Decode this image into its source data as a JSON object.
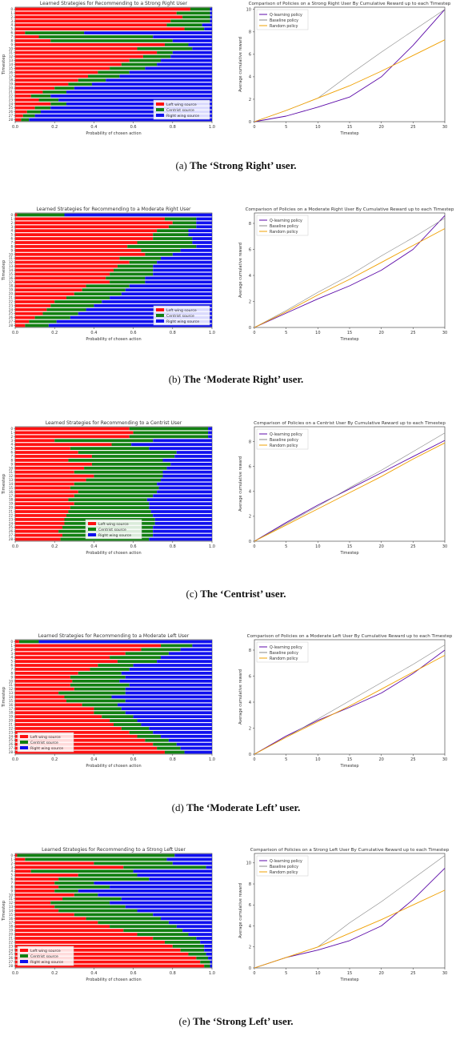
{
  "legend_bar": [
    "Left wing source",
    "Centrist source",
    "Right wing source"
  ],
  "legend_line": [
    "Q-learning policy",
    "Baseline policy",
    "Random policy"
  ],
  "colors": {
    "left": "#ff1111",
    "centrist": "#128012",
    "right": "#1010ee",
    "qlearn": "#5c0aa8",
    "baseline": "#888888",
    "random": "#f0a000"
  },
  "captions": [
    {
      "label": "(a)",
      "text": "The ‘Strong Right’ user."
    },
    {
      "label": "(b)",
      "text": "The ‘Moderate Right’ user."
    },
    {
      "label": "(c)",
      "text": "The ‘Centrist’ user."
    },
    {
      "label": "(d)",
      "text": "The ‘Moderate Left’ user."
    },
    {
      "label": "(e)",
      "text": "The ‘Strong Left’ user."
    }
  ],
  "chart_data": [
    {
      "type": "bar",
      "orientation": "horizontal",
      "stacked": true,
      "title": "Learned Strategies for Recommending to a Strong Right User",
      "xlabel": "Probability of chosen action",
      "ylabel": "Timestep",
      "xlim": [
        0,
        1.0
      ],
      "xticks": [
        "0.0",
        "0.2",
        "0.4",
        "0.6",
        "0.8",
        "1.0"
      ],
      "legend_loc": "lower-right",
      "series": [
        {
          "name": "Left wing source",
          "values": [
            0.89,
            0.82,
            0.85,
            0.79,
            0.77,
            0.86,
            0.05,
            0.12,
            0.18,
            0.76,
            0.62,
            0.72,
            0.65,
            0.58,
            0.54,
            0.48,
            0.42,
            0.37,
            0.32,
            0.27,
            0.2,
            0.14,
            0.08,
            0.12,
            0.18,
            0.1,
            0.06,
            0.04,
            0.03
          ]
        },
        {
          "name": "Centrist source",
          "values": [
            0.1,
            0.17,
            0.14,
            0.2,
            0.18,
            0.1,
            0.3,
            0.58,
            0.62,
            0.12,
            0.28,
            0.08,
            0.14,
            0.16,
            0.18,
            0.18,
            0.16,
            0.16,
            0.14,
            0.12,
            0.1,
            0.12,
            0.1,
            0.1,
            0.08,
            0.08,
            0.07,
            0.06,
            0.04
          ]
        },
        {
          "name": "Right wing source",
          "values": [
            0.01,
            0.01,
            0.01,
            0.01,
            0.05,
            0.04,
            0.65,
            0.3,
            0.2,
            0.12,
            0.1,
            0.2,
            0.21,
            0.26,
            0.28,
            0.34,
            0.42,
            0.47,
            0.54,
            0.61,
            0.7,
            0.74,
            0.82,
            0.78,
            0.74,
            0.82,
            0.87,
            0.9,
            0.93
          ]
        }
      ]
    },
    {
      "type": "line",
      "title": "Comparison of Policies on a Strong Right User By Cumulative Reward up to each Timestep",
      "xlabel": "Timestep",
      "ylabel": "Average cumulative reward",
      "xlim": [
        0,
        30
      ],
      "ylim": [
        0,
        10.2
      ],
      "xticks": [
        "0",
        "5",
        "10",
        "15",
        "20",
        "25",
        "30"
      ],
      "yticks": [
        "0",
        "2",
        "4",
        "6",
        "8",
        "10"
      ],
      "legend_loc": "upper-left",
      "x": [
        0,
        5,
        10,
        15,
        20,
        25,
        30
      ],
      "series": [
        {
          "name": "Q-learning policy",
          "values": [
            0,
            0.5,
            1.3,
            2.2,
            4.0,
            6.8,
            10.0
          ]
        },
        {
          "name": "Baseline policy",
          "values": [
            0,
            1.0,
            2.1,
            4.2,
            6.2,
            8.1,
            10.0
          ]
        },
        {
          "name": "Random policy",
          "values": [
            0,
            1.0,
            2.1,
            3.2,
            4.5,
            5.9,
            7.3
          ]
        }
      ]
    },
    {
      "type": "bar",
      "orientation": "horizontal",
      "stacked": true,
      "title": "Learned Strategies for Recommending to a Moderate Right User",
      "xlabel": "Probability of chosen action",
      "ylabel": "Timestep",
      "xlim": [
        0,
        1.0
      ],
      "xticks": [
        "0.0",
        "0.2",
        "0.4",
        "0.6",
        "0.8",
        "1.0"
      ],
      "legend_loc": "lower-right",
      "series": [
        {
          "name": "Left wing source",
          "values": [
            0.01,
            0.76,
            0.8,
            0.78,
            0.72,
            0.7,
            0.7,
            0.62,
            0.57,
            0.64,
            0.66,
            0.53,
            0.58,
            0.52,
            0.5,
            0.48,
            0.46,
            0.48,
            0.36,
            0.34,
            0.3,
            0.26,
            0.2,
            0.18,
            0.16,
            0.14,
            0.1,
            0.07,
            0.05
          ]
        },
        {
          "name": "Centrist source",
          "values": [
            0.24,
            0.16,
            0.12,
            0.14,
            0.16,
            0.18,
            0.2,
            0.28,
            0.35,
            0.2,
            0.14,
            0.21,
            0.14,
            0.18,
            0.2,
            0.22,
            0.2,
            0.18,
            0.22,
            0.22,
            0.24,
            0.22,
            0.24,
            0.22,
            0.2,
            0.18,
            0.18,
            0.14,
            0.12
          ]
        },
        {
          "name": "Right wing source",
          "values": [
            0.75,
            0.08,
            0.08,
            0.08,
            0.12,
            0.12,
            0.1,
            0.1,
            0.08,
            0.16,
            0.2,
            0.26,
            0.28,
            0.3,
            0.3,
            0.3,
            0.34,
            0.34,
            0.42,
            0.44,
            0.46,
            0.52,
            0.56,
            0.6,
            0.64,
            0.68,
            0.72,
            0.79,
            0.83
          ]
        }
      ]
    },
    {
      "type": "line",
      "title": "Comparison of Policies on a Moderate Right User By Cumulative Reward up to each Timestep",
      "xlabel": "Timestep",
      "ylabel": "Average cumulative reward",
      "xlim": [
        0,
        30
      ],
      "ylim": [
        0,
        8.8
      ],
      "xticks": [
        "0",
        "5",
        "10",
        "15",
        "20",
        "25",
        "30"
      ],
      "yticks": [
        "0",
        "2",
        "4",
        "6",
        "8"
      ],
      "legend_loc": "upper-left",
      "x": [
        0,
        5,
        10,
        15,
        20,
        25,
        30
      ],
      "series": [
        {
          "name": "Q-learning policy",
          "values": [
            0,
            1.1,
            2.2,
            3.2,
            4.4,
            6.0,
            8.6
          ]
        },
        {
          "name": "Baseline policy",
          "values": [
            0,
            1.3,
            2.7,
            4.0,
            5.5,
            6.9,
            8.4
          ]
        },
        {
          "name": "Random policy",
          "values": [
            0,
            1.2,
            2.5,
            3.7,
            5.0,
            6.3,
            7.6
          ]
        }
      ]
    },
    {
      "type": "bar",
      "orientation": "horizontal",
      "stacked": true,
      "title": "Learned Strategies for Recommending to a Centrist User",
      "xlabel": "Probability of chosen action",
      "ylabel": "Timestep",
      "xlim": [
        0,
        1.0
      ],
      "xticks": [
        "0.0",
        "0.2",
        "0.4",
        "0.6",
        "0.8",
        "1.0"
      ],
      "legend_loc": "lower-center",
      "series": [
        {
          "name": "Left wing source",
          "values": [
            0.58,
            0.6,
            0.58,
            0.2,
            0.49,
            0.28,
            0.32,
            0.39,
            0.27,
            0.39,
            0.35,
            0.3,
            0.4,
            0.36,
            0.3,
            0.28,
            0.32,
            0.3,
            0.27,
            0.3,
            0.28,
            0.27,
            0.26,
            0.25,
            0.25,
            0.24,
            0.22,
            0.24,
            0.23
          ]
        },
        {
          "name": "Centrist source",
          "values": [
            0.4,
            0.38,
            0.4,
            0.5,
            0.1,
            0.4,
            0.5,
            0.42,
            0.48,
            0.4,
            0.42,
            0.45,
            0.35,
            0.38,
            0.42,
            0.45,
            0.4,
            0.4,
            0.4,
            0.38,
            0.4,
            0.42,
            0.44,
            0.46,
            0.46,
            0.46,
            0.48,
            0.46,
            0.45
          ]
        },
        {
          "name": "Right wing source",
          "values": [
            0.02,
            0.02,
            0.02,
            0.3,
            0.41,
            0.32,
            0.18,
            0.19,
            0.25,
            0.21,
            0.23,
            0.25,
            0.25,
            0.26,
            0.28,
            0.27,
            0.28,
            0.3,
            0.33,
            0.32,
            0.32,
            0.31,
            0.3,
            0.29,
            0.29,
            0.3,
            0.3,
            0.3,
            0.32
          ]
        }
      ]
    },
    {
      "type": "line",
      "title": "Comparison of Policies on a Centrist User By Cumulative Reward up to each Timestep",
      "xlabel": "Timestep",
      "ylabel": "Average cumulative reward",
      "xlim": [
        0,
        30
      ],
      "ylim": [
        0,
        9.2
      ],
      "xticks": [
        "0",
        "5",
        "10",
        "15",
        "20",
        "25",
        "30"
      ],
      "yticks": [
        "0",
        "2",
        "4",
        "6",
        "8"
      ],
      "legend_loc": "upper-left",
      "x": [
        0,
        5,
        10,
        15,
        20,
        25,
        30
      ],
      "series": [
        {
          "name": "Q-learning policy",
          "values": [
            0,
            1.5,
            2.9,
            4.2,
            5.5,
            6.8,
            8.1
          ]
        },
        {
          "name": "Baseline policy",
          "values": [
            0,
            1.4,
            2.8,
            4.3,
            5.7,
            7.2,
            8.7
          ]
        },
        {
          "name": "Random policy",
          "values": [
            0,
            1.3,
            2.6,
            3.9,
            5.2,
            6.6,
            7.9
          ]
        }
      ]
    },
    {
      "type": "bar",
      "orientation": "horizontal",
      "stacked": true,
      "title": "Learned Strategies for Recommending to a Moderate Left User",
      "xlabel": "Probability of chosen action",
      "ylabel": "Timestep",
      "xlim": [
        0,
        1.0
      ],
      "xticks": [
        "0.0",
        "0.2",
        "0.4",
        "0.6",
        "0.8",
        "1.0"
      ],
      "legend_loc": "lower-left",
      "series": [
        {
          "name": "Left wing source",
          "values": [
            0.02,
            0.74,
            0.64,
            0.56,
            0.48,
            0.52,
            0.42,
            0.38,
            0.32,
            0.28,
            0.29,
            0.28,
            0.3,
            0.22,
            0.25,
            0.26,
            0.34,
            0.4,
            0.4,
            0.44,
            0.48,
            0.5,
            0.54,
            0.58,
            0.62,
            0.66,
            0.7,
            0.72,
            0.76
          ]
        },
        {
          "name": "Centrist source",
          "values": [
            0.1,
            0.16,
            0.2,
            0.22,
            0.26,
            0.2,
            0.18,
            0.2,
            0.22,
            0.28,
            0.24,
            0.3,
            0.26,
            0.34,
            0.24,
            0.3,
            0.18,
            0.14,
            0.16,
            0.16,
            0.14,
            0.14,
            0.14,
            0.12,
            0.12,
            0.12,
            0.12,
            0.12,
            0.1
          ]
        },
        {
          "name": "Right wing source",
          "values": [
            0.88,
            0.1,
            0.16,
            0.22,
            0.26,
            0.28,
            0.4,
            0.42,
            0.46,
            0.44,
            0.47,
            0.42,
            0.44,
            0.44,
            0.51,
            0.44,
            0.48,
            0.46,
            0.44,
            0.4,
            0.38,
            0.36,
            0.32,
            0.3,
            0.26,
            0.22,
            0.18,
            0.16,
            0.14
          ]
        }
      ]
    },
    {
      "type": "line",
      "title": "Comparison of Policies on a Moderate Left User By Cumulative Reward up to each Timestep",
      "xlabel": "Timestep",
      "ylabel": "Average cumulative reward",
      "xlim": [
        0,
        30
      ],
      "ylim": [
        0,
        8.8
      ],
      "xticks": [
        "0",
        "5",
        "10",
        "15",
        "20",
        "25",
        "30"
      ],
      "yticks": [
        "0",
        "2",
        "4",
        "6",
        "8"
      ],
      "legend_loc": "upper-left",
      "x": [
        0,
        5,
        10,
        15,
        20,
        25,
        30
      ],
      "series": [
        {
          "name": "Q-learning policy",
          "values": [
            0,
            1.4,
            2.6,
            3.6,
            4.7,
            6.2,
            8.0
          ]
        },
        {
          "name": "Baseline policy",
          "values": [
            0,
            1.3,
            2.7,
            4.1,
            5.5,
            6.9,
            8.4
          ]
        },
        {
          "name": "Random policy",
          "values": [
            0,
            1.3,
            2.5,
            3.7,
            5.0,
            6.3,
            7.6
          ]
        }
      ]
    },
    {
      "type": "bar",
      "orientation": "horizontal",
      "stacked": true,
      "title": "Learned Strategies for Recommending to a Strong Left User",
      "xlabel": "Probability of chosen action",
      "ylabel": "Timestep",
      "xlim": [
        0,
        1.0
      ],
      "xticks": [
        "0.0",
        "0.2",
        "0.4",
        "0.6",
        "0.8",
        "1.0"
      ],
      "legend_loc": "lower-left",
      "series": [
        {
          "name": "Left wing source",
          "values": [
            0.01,
            0.05,
            0.4,
            0.55,
            0.08,
            0.32,
            0.22,
            0.2,
            0.22,
            0.2,
            0.3,
            0.24,
            0.18,
            0.2,
            0.22,
            0.3,
            0.36,
            0.42,
            0.48,
            0.55,
            0.62,
            0.7,
            0.76,
            0.8,
            0.84,
            0.88,
            0.92,
            0.94,
            0.96
          ]
        },
        {
          "name": "Centrist source",
          "values": [
            0.8,
            0.72,
            0.4,
            0.42,
            0.52,
            0.3,
            0.46,
            0.2,
            0.26,
            0.12,
            0.12,
            0.3,
            0.3,
            0.36,
            0.4,
            0.4,
            0.38,
            0.36,
            0.34,
            0.3,
            0.26,
            0.22,
            0.18,
            0.16,
            0.12,
            0.09,
            0.06,
            0.05,
            0.03
          ]
        },
        {
          "name": "Right wing source",
          "values": [
            0.19,
            0.23,
            0.2,
            0.03,
            0.4,
            0.38,
            0.32,
            0.6,
            0.52,
            0.68,
            0.58,
            0.46,
            0.52,
            0.44,
            0.38,
            0.3,
            0.26,
            0.22,
            0.18,
            0.15,
            0.12,
            0.08,
            0.06,
            0.04,
            0.04,
            0.03,
            0.02,
            0.01,
            0.01
          ]
        }
      ]
    },
    {
      "type": "line",
      "title": "Comparison of Policies on a Strong Left User By Cumulative Reward up to each Timestep",
      "xlabel": "Timestep",
      "ylabel": "Average cumulative reward",
      "xlim": [
        0,
        30
      ],
      "ylim": [
        0,
        10.9
      ],
      "xticks": [
        "0",
        "5",
        "10",
        "15",
        "20",
        "25",
        "30"
      ],
      "yticks": [
        "0",
        "2",
        "4",
        "6",
        "8",
        "10"
      ],
      "legend_loc": "upper-left",
      "x": [
        0,
        5,
        10,
        15,
        20,
        25,
        30
      ],
      "series": [
        {
          "name": "Q-learning policy",
          "values": [
            0,
            1.0,
            1.7,
            2.6,
            4.0,
            6.5,
            9.5
          ]
        },
        {
          "name": "Baseline policy",
          "values": [
            0,
            1.0,
            2.0,
            4.3,
            6.3,
            8.5,
            10.7
          ]
        },
        {
          "name": "Random policy",
          "values": [
            0,
            1.0,
            2.0,
            3.3,
            4.6,
            6.0,
            7.4
          ]
        }
      ]
    }
  ]
}
